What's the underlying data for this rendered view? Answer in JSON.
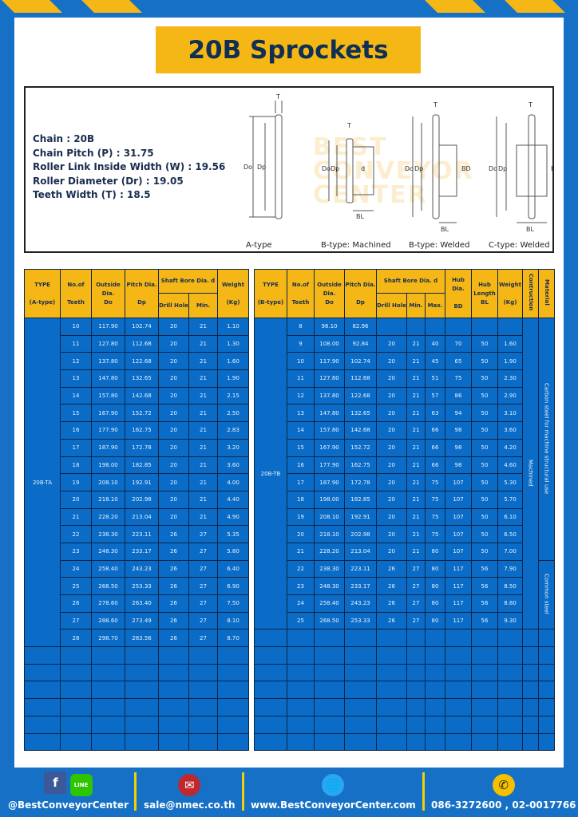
{
  "title": "20B Sprockets",
  "specs": [
    {
      "label": "Chain",
      "value": "20B"
    },
    {
      "label": "Chain Pitch (P)",
      "value": "31.75"
    },
    {
      "label": "Roller Link Inside Width (W)",
      "value": "19.56"
    },
    {
      "label": "Roller Diameter (Dr)",
      "value": "19.05"
    },
    {
      "label": "Teeth Width (T)",
      "value": "18.5"
    }
  ],
  "diagram": {
    "types": [
      "A-type",
      "B-type: Machined",
      "B-type: Welded",
      "C-type: Welded"
    ],
    "dim_labels": {
      "T": "T",
      "Do": "Do",
      "Dp": "Dp",
      "d": "d",
      "BL": "BL",
      "BD": "BD"
    },
    "watermark": "BEST CONVEYOR CENTER"
  },
  "table_a": {
    "headers": {
      "type": "TYPE",
      "type_sub": "(A-type)",
      "teeth": "No.of",
      "teeth_sub": "Teeth",
      "outside": "Outside",
      "outside_sub": "Dia.",
      "outside_sub2": "Do",
      "pitch": "Pitch Dia.",
      "pitch_sub": "Dp",
      "bore": "Shaft Bore Dia. d",
      "drill": "Drill Hole",
      "min": "Min.",
      "weight": "Weight",
      "weight_sub": "(Kg)"
    },
    "type_value": "20B-TA",
    "rows": [
      [
        "10",
        "117.90",
        "102.74",
        "20",
        "21",
        "1.10"
      ],
      [
        "11",
        "127.80",
        "112.68",
        "20",
        "21",
        "1.30"
      ],
      [
        "12",
        "137.80",
        "122.68",
        "20",
        "21",
        "1.60"
      ],
      [
        "13",
        "147.80",
        "132.65",
        "20",
        "21",
        "1.90"
      ],
      [
        "14",
        "157.80",
        "142.68",
        "20",
        "21",
        "2.15"
      ],
      [
        "15",
        "167.90",
        "152.72",
        "20",
        "21",
        "2.50"
      ],
      [
        "16",
        "177.90",
        "162.75",
        "20",
        "21",
        "2.83"
      ],
      [
        "17",
        "187.90",
        "172.78",
        "20",
        "21",
        "3.20"
      ],
      [
        "18",
        "198.00",
        "182.85",
        "20",
        "21",
        "3.60"
      ],
      [
        "19",
        "208.10",
        "192.91",
        "20",
        "21",
        "4.00"
      ],
      [
        "20",
        "218.10",
        "202.98",
        "20",
        "21",
        "4.40"
      ],
      [
        "21",
        "228.20",
        "213.04",
        "20",
        "21",
        "4.90"
      ],
      [
        "22",
        "238.30",
        "223.11",
        "26",
        "27",
        "5.35"
      ],
      [
        "23",
        "248.30",
        "233.17",
        "26",
        "27",
        "5.80"
      ],
      [
        "24",
        "258.40",
        "243.23",
        "26",
        "27",
        "6.40"
      ],
      [
        "25",
        "268.50",
        "253.33",
        "26",
        "27",
        "6.90"
      ],
      [
        "26",
        "278.60",
        "263.40",
        "26",
        "27",
        "7.50"
      ],
      [
        "27",
        "288.60",
        "273.49",
        "26",
        "27",
        "8.10"
      ],
      [
        "28",
        "298.70",
        "283.56",
        "26",
        "27",
        "8.70"
      ]
    ]
  },
  "table_b": {
    "headers": {
      "type": "TYPE",
      "type_sub": "(B-type)",
      "teeth": "No.of",
      "teeth_sub": "Teeth",
      "outside": "Outside",
      "outside_sub": "Dia.",
      "outside_sub2": "Do",
      "pitch": "Pitch Dia.",
      "pitch_sub": "Dp",
      "bore": "Shaft Bore Dia. d",
      "drill": "Drill Hole",
      "min": "Min.",
      "max": "Max.",
      "hub_dia": "Hub Dia.",
      "hub_dia_sub": "BD",
      "hub_len": "Hub",
      "hub_len_sub": "Length",
      "hub_len_sub2": "BL",
      "weight": "Weight",
      "weight_sub": "(Kg)",
      "construction": "Contruction",
      "material": "Material"
    },
    "type_value": "20B-TB",
    "construction_value": "Machined",
    "material_values": [
      "Carbon steel for machine structural use",
      "Common steel"
    ],
    "rows": [
      [
        "8",
        "98.10",
        "82.96",
        "",
        "",
        "",
        "",
        "",
        "",
        ""
      ],
      [
        "9",
        "108.00",
        "92.84",
        "20",
        "21",
        "40",
        "70",
        "50",
        "1.60"
      ],
      [
        "10",
        "117.90",
        "102.74",
        "20",
        "21",
        "45",
        "65",
        "50",
        "1.90"
      ],
      [
        "11",
        "127.80",
        "112.68",
        "20",
        "21",
        "51",
        "75",
        "50",
        "2.30"
      ],
      [
        "12",
        "137.80",
        "122.68",
        "20",
        "21",
        "57",
        "86",
        "50",
        "2.90"
      ],
      [
        "13",
        "147.80",
        "132.65",
        "20",
        "21",
        "63",
        "94",
        "50",
        "3.10"
      ],
      [
        "14",
        "157.80",
        "142.68",
        "20",
        "21",
        "66",
        "98",
        "50",
        "3.60"
      ],
      [
        "15",
        "167.90",
        "152.72",
        "20",
        "21",
        "66",
        "98",
        "50",
        "4.20"
      ],
      [
        "16",
        "177.90",
        "162.75",
        "20",
        "21",
        "66",
        "98",
        "50",
        "4.60"
      ],
      [
        "17",
        "187.90",
        "172.78",
        "20",
        "21",
        "75",
        "107",
        "50",
        "5.30"
      ],
      [
        "18",
        "198.00",
        "182.85",
        "20",
        "21",
        "75",
        "107",
        "50",
        "5.70"
      ],
      [
        "19",
        "208.10",
        "192.91",
        "20",
        "21",
        "75",
        "107",
        "50",
        "6.10"
      ],
      [
        "20",
        "218.10",
        "202.98",
        "20",
        "21",
        "75",
        "107",
        "50",
        "6.50"
      ],
      [
        "21",
        "228.20",
        "213.04",
        "20",
        "21",
        "80",
        "107",
        "50",
        "7.00"
      ],
      [
        "22",
        "238.30",
        "223.11",
        "26",
        "27",
        "80",
        "117",
        "56",
        "7.90"
      ],
      [
        "23",
        "248.30",
        "233.17",
        "26",
        "27",
        "80",
        "117",
        "56",
        "8.50"
      ],
      [
        "24",
        "258.40",
        "243.23",
        "26",
        "27",
        "80",
        "117",
        "56",
        "8.80"
      ],
      [
        "25",
        "268.50",
        "253.33",
        "26",
        "27",
        "80",
        "117",
        "56",
        "9.30"
      ]
    ]
  },
  "footer": {
    "social": "@BestConveyorCenter",
    "email": "sale@nmec.co.th",
    "website": "www.BestConveyorCenter.com",
    "phone": "086-3272600 , 02-0017766",
    "line_label": "LINE"
  },
  "colors": {
    "blue": "#0a6cc6",
    "yellow": "#f5b716",
    "navy": "#1a2d4f"
  }
}
